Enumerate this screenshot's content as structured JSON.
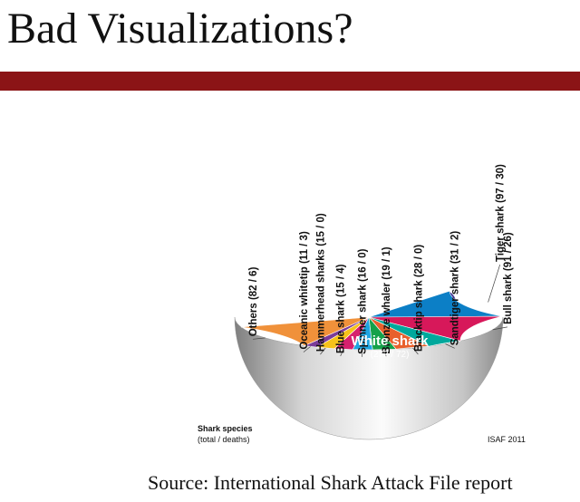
{
  "slide": {
    "title": "Bad Visualizations?",
    "source": "Source: International Shark Attack File report"
  },
  "colors": {
    "title_bar": "#8b1416",
    "bowl_shade": "#c9c9c9"
  },
  "chart_data": {
    "type": "pie",
    "style": "3D hemisphere bowl",
    "legend_title": "Shark species",
    "legend_subtitle": "(total / deaths)",
    "credit": "ISAF 2011",
    "slices": [
      {
        "label": "White shark",
        "detail": "(272 / 72)",
        "total": 272,
        "deaths": 72,
        "color": "#3e2e8f"
      },
      {
        "label": "Tiger shark",
        "detail": "(97 / 30)",
        "total": 97,
        "deaths": 30,
        "color": "#0c7fc6"
      },
      {
        "label": "Bull shark",
        "detail": "(91 / 26)",
        "total": 91,
        "deaths": 26,
        "color": "#d7185a"
      },
      {
        "label": "Sandtiger shark",
        "detail": "(31 / 2)",
        "total": 31,
        "deaths": 2,
        "color": "#00a89c"
      },
      {
        "label": "Blacktip shark",
        "detail": "(28 / 0)",
        "total": 28,
        "deaths": 0,
        "color": "#e8602c"
      },
      {
        "label": "Bronze whaler",
        "detail": "(19 / 1)",
        "total": 19,
        "deaths": 1,
        "color": "#15a14a"
      },
      {
        "label": "Spinner shark",
        "detail": "(16 / 0)",
        "total": 16,
        "deaths": 0,
        "color": "#1fa4e0"
      },
      {
        "label": "Blue shark",
        "detail": "(15 / 4)",
        "total": 15,
        "deaths": 4,
        "color": "#d6206e"
      },
      {
        "label": "Hammerhead sharks",
        "detail": "(15 / 0)",
        "total": 15,
        "deaths": 0,
        "color": "#f6c21a"
      },
      {
        "label": "Oceanic whitetip",
        "detail": "(11 / 3)",
        "total": 11,
        "deaths": 3,
        "color": "#7a3b98"
      },
      {
        "label": "Others",
        "detail": "(82 / 6)",
        "total": 82,
        "deaths": 6,
        "color": "#f0913a"
      }
    ]
  }
}
